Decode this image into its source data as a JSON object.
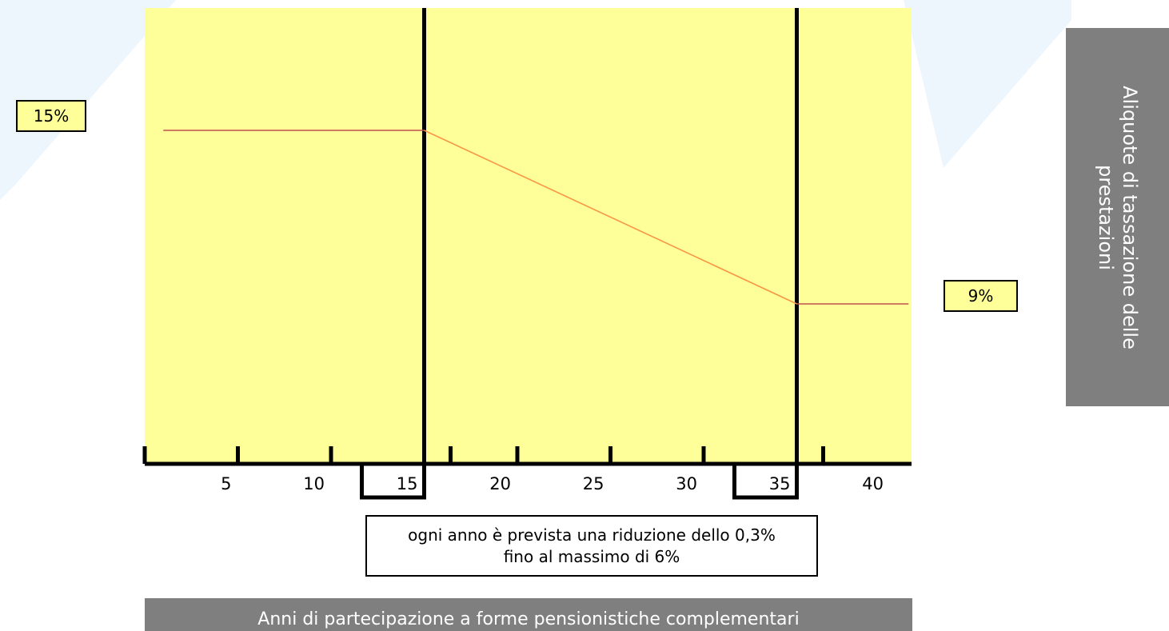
{
  "chart_data": {
    "type": "line",
    "xlabel": "Anni di partecipazione a forme pensionistiche complementari",
    "ylabel": "Aliquote di tassazione delle prestazioni",
    "x_ticks": [
      5,
      10,
      15,
      20,
      25,
      30,
      35,
      40
    ],
    "xlim": [
      0,
      41
    ],
    "highlighted_ticks": [
      15,
      35
    ],
    "thresholds": [
      15,
      35
    ],
    "series": [
      {
        "x": [
          1,
          15
        ],
        "y": [
          15,
          15
        ]
      },
      {
        "x": [
          15,
          35
        ],
        "y": [
          15,
          9
        ]
      },
      {
        "x": [
          35,
          41
        ],
        "y": [
          9,
          9
        ]
      }
    ],
    "value_labels": {
      "start": "15%",
      "end": "9%"
    },
    "annotation": {
      "line1": "ogni anno è prevista una riduzione dello 0,3%",
      "line2": "fino al massimo di 6%"
    },
    "colors": {
      "plot_background": "#ffff99",
      "line_flat": "#c0504d",
      "line_slope": "#f79646",
      "axis_panel": "#7f7f7f"
    }
  }
}
